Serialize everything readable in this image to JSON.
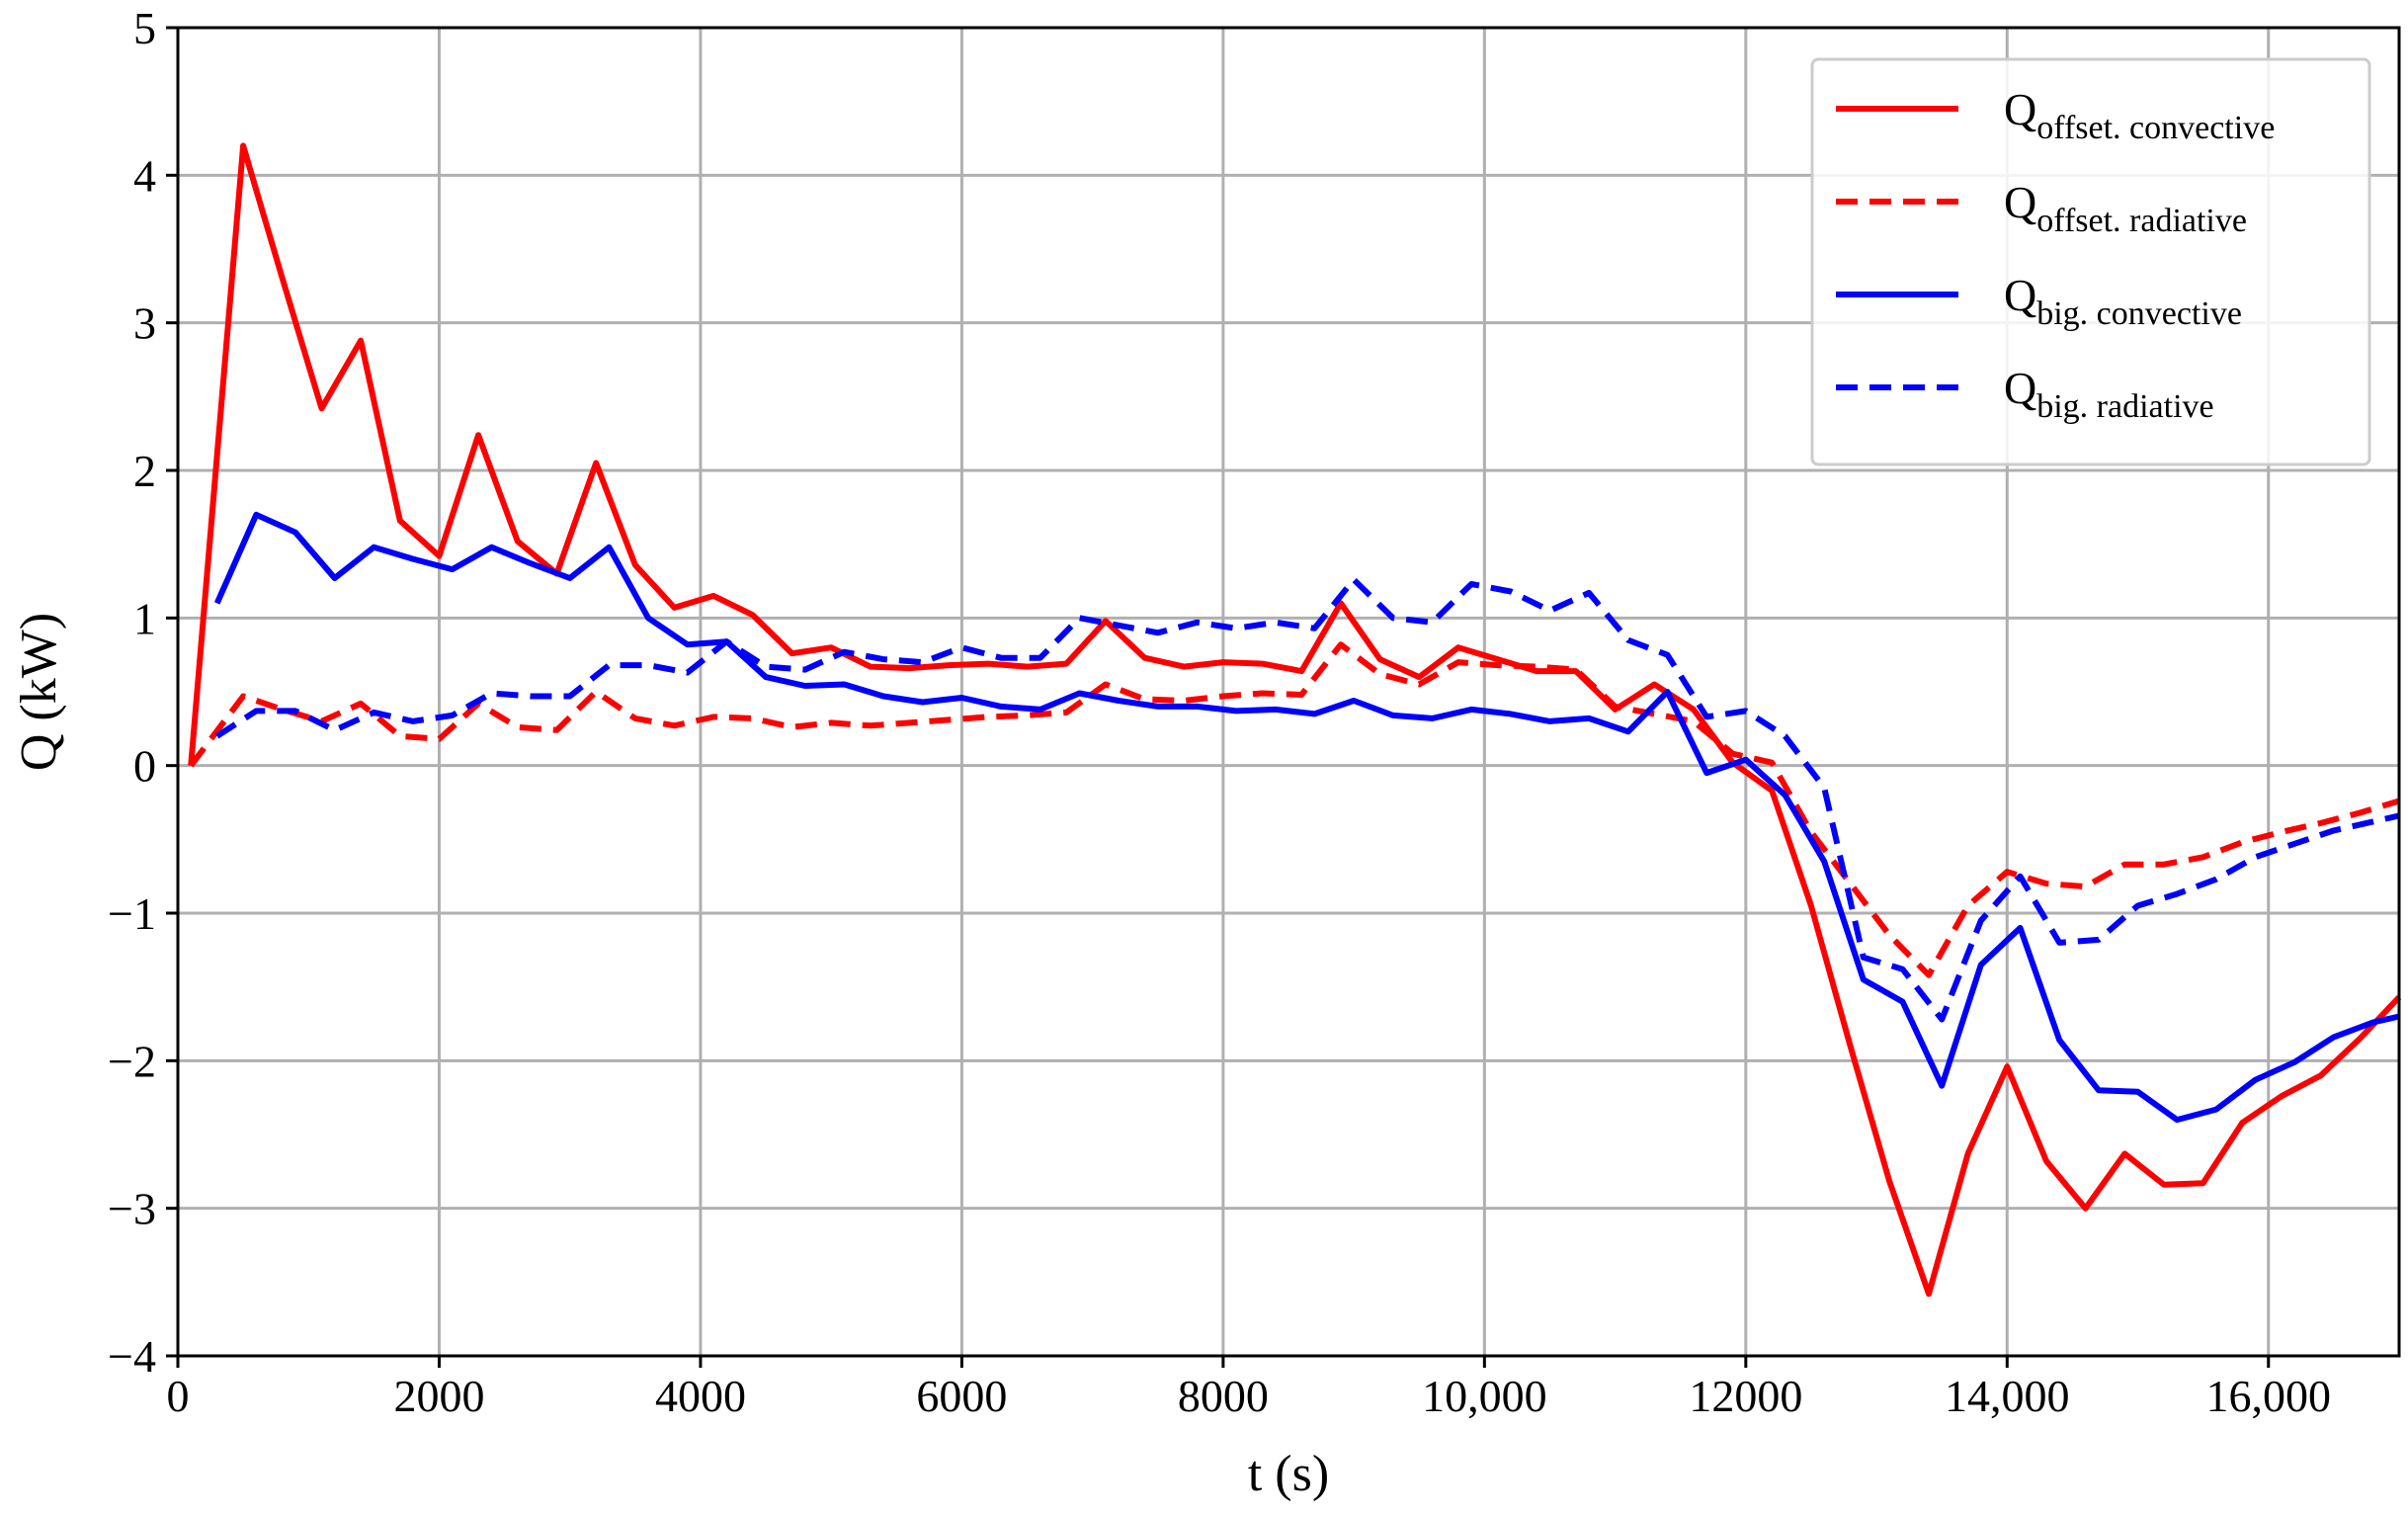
{
  "chart_data": {
    "type": "line",
    "xlabel": "t (s)",
    "ylabel": "Q (kW)",
    "xlim": [
      0,
      17000
    ],
    "ylim": [
      -4,
      5
    ],
    "grid": true,
    "legend_position": "top-right",
    "x_ticks": [
      {
        "value": 0,
        "label": "0"
      },
      {
        "value": 2000,
        "label": "2000"
      },
      {
        "value": 4000,
        "label": "4000"
      },
      {
        "value": 6000,
        "label": "6000"
      },
      {
        "value": 8000,
        "label": "8000"
      },
      {
        "value": 10000,
        "label": "10,000"
      },
      {
        "value": 12000,
        "label": "12000"
      },
      {
        "value": 14000,
        "label": "14,000"
      },
      {
        "value": 16000,
        "label": "16,000"
      }
    ],
    "y_ticks": [
      {
        "value": 5,
        "label": "5"
      },
      {
        "value": 4,
        "label": "4"
      },
      {
        "value": 3,
        "label": "3"
      },
      {
        "value": 2,
        "label": "2"
      },
      {
        "value": 1,
        "label": "1"
      },
      {
        "value": 0,
        "label": "0"
      },
      {
        "value": -1,
        "label": "−1"
      },
      {
        "value": -2,
        "label": "−2"
      },
      {
        "value": -3,
        "label": "−3"
      },
      {
        "value": -4,
        "label": "−4"
      }
    ],
    "series": [
      {
        "name": "Q offset. convective",
        "label_main": "Q",
        "label_sub": "offset. convective",
        "color": "#ff0000",
        "dash": "solid",
        "points": [
          [
            100,
            0.0
          ],
          [
            500,
            4.2
          ],
          [
            800,
            3.3
          ],
          [
            1100,
            2.42
          ],
          [
            1400,
            2.88
          ],
          [
            1700,
            1.66
          ],
          [
            2000,
            1.42
          ],
          [
            2300,
            2.24
          ],
          [
            2600,
            1.52
          ],
          [
            2900,
            1.3
          ],
          [
            3200,
            2.05
          ],
          [
            3500,
            1.36
          ],
          [
            3800,
            1.07
          ],
          [
            4100,
            1.15
          ],
          [
            4400,
            1.02
          ],
          [
            4700,
            0.76
          ],
          [
            5000,
            0.8
          ],
          [
            5300,
            0.67
          ],
          [
            5600,
            0.66
          ],
          [
            5900,
            0.68
          ],
          [
            6200,
            0.69
          ],
          [
            6500,
            0.67
          ],
          [
            6800,
            0.69
          ],
          [
            7100,
            0.98
          ],
          [
            7400,
            0.73
          ],
          [
            7700,
            0.67
          ],
          [
            8000,
            0.7
          ],
          [
            8300,
            0.69
          ],
          [
            8600,
            0.64
          ],
          [
            8900,
            1.1
          ],
          [
            9200,
            0.72
          ],
          [
            9500,
            0.6
          ],
          [
            9800,
            0.8
          ],
          [
            10100,
            0.72
          ],
          [
            10400,
            0.64
          ],
          [
            10700,
            0.64
          ],
          [
            11000,
            0.38
          ],
          [
            11300,
            0.55
          ],
          [
            11600,
            0.38
          ],
          [
            11900,
            0.02
          ],
          [
            12200,
            -0.17
          ],
          [
            12500,
            -0.95
          ],
          [
            12800,
            -1.9
          ],
          [
            13100,
            -2.82
          ],
          [
            13400,
            -3.58
          ],
          [
            13700,
            -2.63
          ],
          [
            14000,
            -2.04
          ],
          [
            14300,
            -2.68
          ],
          [
            14600,
            -3.0
          ],
          [
            14900,
            -2.63
          ],
          [
            15200,
            -2.84
          ],
          [
            15500,
            -2.83
          ],
          [
            15800,
            -2.42
          ],
          [
            16100,
            -2.24
          ],
          [
            16400,
            -2.1
          ],
          [
            16700,
            -1.85
          ],
          [
            17000,
            -1.57
          ]
        ]
      },
      {
        "name": "Q offset. radiative",
        "label_main": "Q",
        "label_sub": "offset. radiative",
        "color": "#ff0000",
        "dash": "dashed",
        "points": [
          [
            100,
            0.0
          ],
          [
            500,
            0.47
          ],
          [
            800,
            0.38
          ],
          [
            1100,
            0.3
          ],
          [
            1400,
            0.42
          ],
          [
            1700,
            0.2
          ],
          [
            2000,
            0.18
          ],
          [
            2300,
            0.42
          ],
          [
            2600,
            0.26
          ],
          [
            2900,
            0.24
          ],
          [
            3200,
            0.5
          ],
          [
            3500,
            0.32
          ],
          [
            3800,
            0.27
          ],
          [
            4100,
            0.33
          ],
          [
            4400,
            0.32
          ],
          [
            4700,
            0.26
          ],
          [
            5000,
            0.29
          ],
          [
            5300,
            0.27
          ],
          [
            5600,
            0.29
          ],
          [
            5900,
            0.31
          ],
          [
            6200,
            0.33
          ],
          [
            6500,
            0.34
          ],
          [
            6800,
            0.36
          ],
          [
            7100,
            0.55
          ],
          [
            7400,
            0.45
          ],
          [
            7700,
            0.44
          ],
          [
            8000,
            0.47
          ],
          [
            8300,
            0.49
          ],
          [
            8600,
            0.48
          ],
          [
            8900,
            0.82
          ],
          [
            9200,
            0.62
          ],
          [
            9500,
            0.55
          ],
          [
            9800,
            0.7
          ],
          [
            10100,
            0.68
          ],
          [
            10400,
            0.67
          ],
          [
            10700,
            0.65
          ],
          [
            11000,
            0.4
          ],
          [
            11300,
            0.35
          ],
          [
            11600,
            0.3
          ],
          [
            11900,
            0.08
          ],
          [
            12200,
            0.02
          ],
          [
            12500,
            -0.45
          ],
          [
            12800,
            -0.8
          ],
          [
            13100,
            -1.15
          ],
          [
            13400,
            -1.42
          ],
          [
            13700,
            -0.95
          ],
          [
            14000,
            -0.72
          ],
          [
            14300,
            -0.8
          ],
          [
            14600,
            -0.82
          ],
          [
            14900,
            -0.67
          ],
          [
            15200,
            -0.67
          ],
          [
            15500,
            -0.62
          ],
          [
            15800,
            -0.52
          ],
          [
            16100,
            -0.45
          ],
          [
            16400,
            -0.39
          ],
          [
            16700,
            -0.32
          ],
          [
            17000,
            -0.24
          ]
        ]
      },
      {
        "name": "Q big. convective",
        "label_main": "Q",
        "label_sub": "big. convective",
        "color": "#0000ff",
        "dash": "solid",
        "points": [
          [
            300,
            1.1
          ],
          [
            600,
            1.7
          ],
          [
            900,
            1.58
          ],
          [
            1200,
            1.27
          ],
          [
            1500,
            1.48
          ],
          [
            1800,
            1.4
          ],
          [
            2100,
            1.33
          ],
          [
            2400,
            1.48
          ],
          [
            2700,
            1.37
          ],
          [
            3000,
            1.27
          ],
          [
            3300,
            1.48
          ],
          [
            3600,
            1.0
          ],
          [
            3900,
            0.82
          ],
          [
            4200,
            0.84
          ],
          [
            4500,
            0.6
          ],
          [
            4800,
            0.54
          ],
          [
            5100,
            0.55
          ],
          [
            5400,
            0.47
          ],
          [
            5700,
            0.43
          ],
          [
            6000,
            0.46
          ],
          [
            6300,
            0.4
          ],
          [
            6600,
            0.38
          ],
          [
            6900,
            0.49
          ],
          [
            7200,
            0.44
          ],
          [
            7500,
            0.4
          ],
          [
            7800,
            0.4
          ],
          [
            8100,
            0.37
          ],
          [
            8400,
            0.38
          ],
          [
            8700,
            0.35
          ],
          [
            9000,
            0.44
          ],
          [
            9300,
            0.34
          ],
          [
            9600,
            0.32
          ],
          [
            9900,
            0.38
          ],
          [
            10200,
            0.35
          ],
          [
            10500,
            0.3
          ],
          [
            10800,
            0.32
          ],
          [
            11100,
            0.23
          ],
          [
            11400,
            0.5
          ],
          [
            11700,
            -0.05
          ],
          [
            12000,
            0.04
          ],
          [
            12300,
            -0.2
          ],
          [
            12600,
            -0.65
          ],
          [
            12900,
            -1.45
          ],
          [
            13200,
            -1.6
          ],
          [
            13500,
            -2.17
          ],
          [
            13800,
            -1.35
          ],
          [
            14100,
            -1.1
          ],
          [
            14400,
            -1.86
          ],
          [
            14700,
            -2.2
          ],
          [
            15000,
            -2.21
          ],
          [
            15300,
            -2.4
          ],
          [
            15600,
            -2.33
          ],
          [
            15900,
            -2.13
          ],
          [
            16200,
            -2.01
          ],
          [
            16500,
            -1.84
          ],
          [
            16800,
            -1.74
          ],
          [
            17000,
            -1.7
          ]
        ]
      },
      {
        "name": "Q big. radiative",
        "label_main": "Q",
        "label_sub": "big. radiative",
        "color": "#0000ff",
        "dash": "dashed",
        "points": [
          [
            300,
            0.2
          ],
          [
            600,
            0.37
          ],
          [
            900,
            0.37
          ],
          [
            1200,
            0.24
          ],
          [
            1500,
            0.36
          ],
          [
            1800,
            0.3
          ],
          [
            2100,
            0.34
          ],
          [
            2400,
            0.49
          ],
          [
            2700,
            0.47
          ],
          [
            3000,
            0.47
          ],
          [
            3300,
            0.68
          ],
          [
            3600,
            0.68
          ],
          [
            3900,
            0.63
          ],
          [
            4200,
            0.84
          ],
          [
            4500,
            0.67
          ],
          [
            4800,
            0.65
          ],
          [
            5100,
            0.77
          ],
          [
            5400,
            0.72
          ],
          [
            5700,
            0.7
          ],
          [
            6000,
            0.8
          ],
          [
            6300,
            0.73
          ],
          [
            6600,
            0.73
          ],
          [
            6900,
            1.0
          ],
          [
            7200,
            0.95
          ],
          [
            7500,
            0.9
          ],
          [
            7800,
            0.97
          ],
          [
            8100,
            0.93
          ],
          [
            8400,
            0.97
          ],
          [
            8700,
            0.93
          ],
          [
            9000,
            1.26
          ],
          [
            9300,
            1.0
          ],
          [
            9600,
            0.97
          ],
          [
            9900,
            1.23
          ],
          [
            10200,
            1.18
          ],
          [
            10500,
            1.05
          ],
          [
            10800,
            1.17
          ],
          [
            11100,
            0.85
          ],
          [
            11400,
            0.75
          ],
          [
            11700,
            0.33
          ],
          [
            12000,
            0.37
          ],
          [
            12300,
            0.2
          ],
          [
            12600,
            -0.15
          ],
          [
            12900,
            -1.3
          ],
          [
            13200,
            -1.38
          ],
          [
            13500,
            -1.72
          ],
          [
            13800,
            -1.05
          ],
          [
            14100,
            -0.75
          ],
          [
            14400,
            -1.2
          ],
          [
            14700,
            -1.18
          ],
          [
            15000,
            -0.95
          ],
          [
            15300,
            -0.87
          ],
          [
            15600,
            -0.77
          ],
          [
            15900,
            -0.62
          ],
          [
            16200,
            -0.53
          ],
          [
            16500,
            -0.44
          ],
          [
            16800,
            -0.38
          ],
          [
            17000,
            -0.34
          ]
        ]
      }
    ]
  }
}
